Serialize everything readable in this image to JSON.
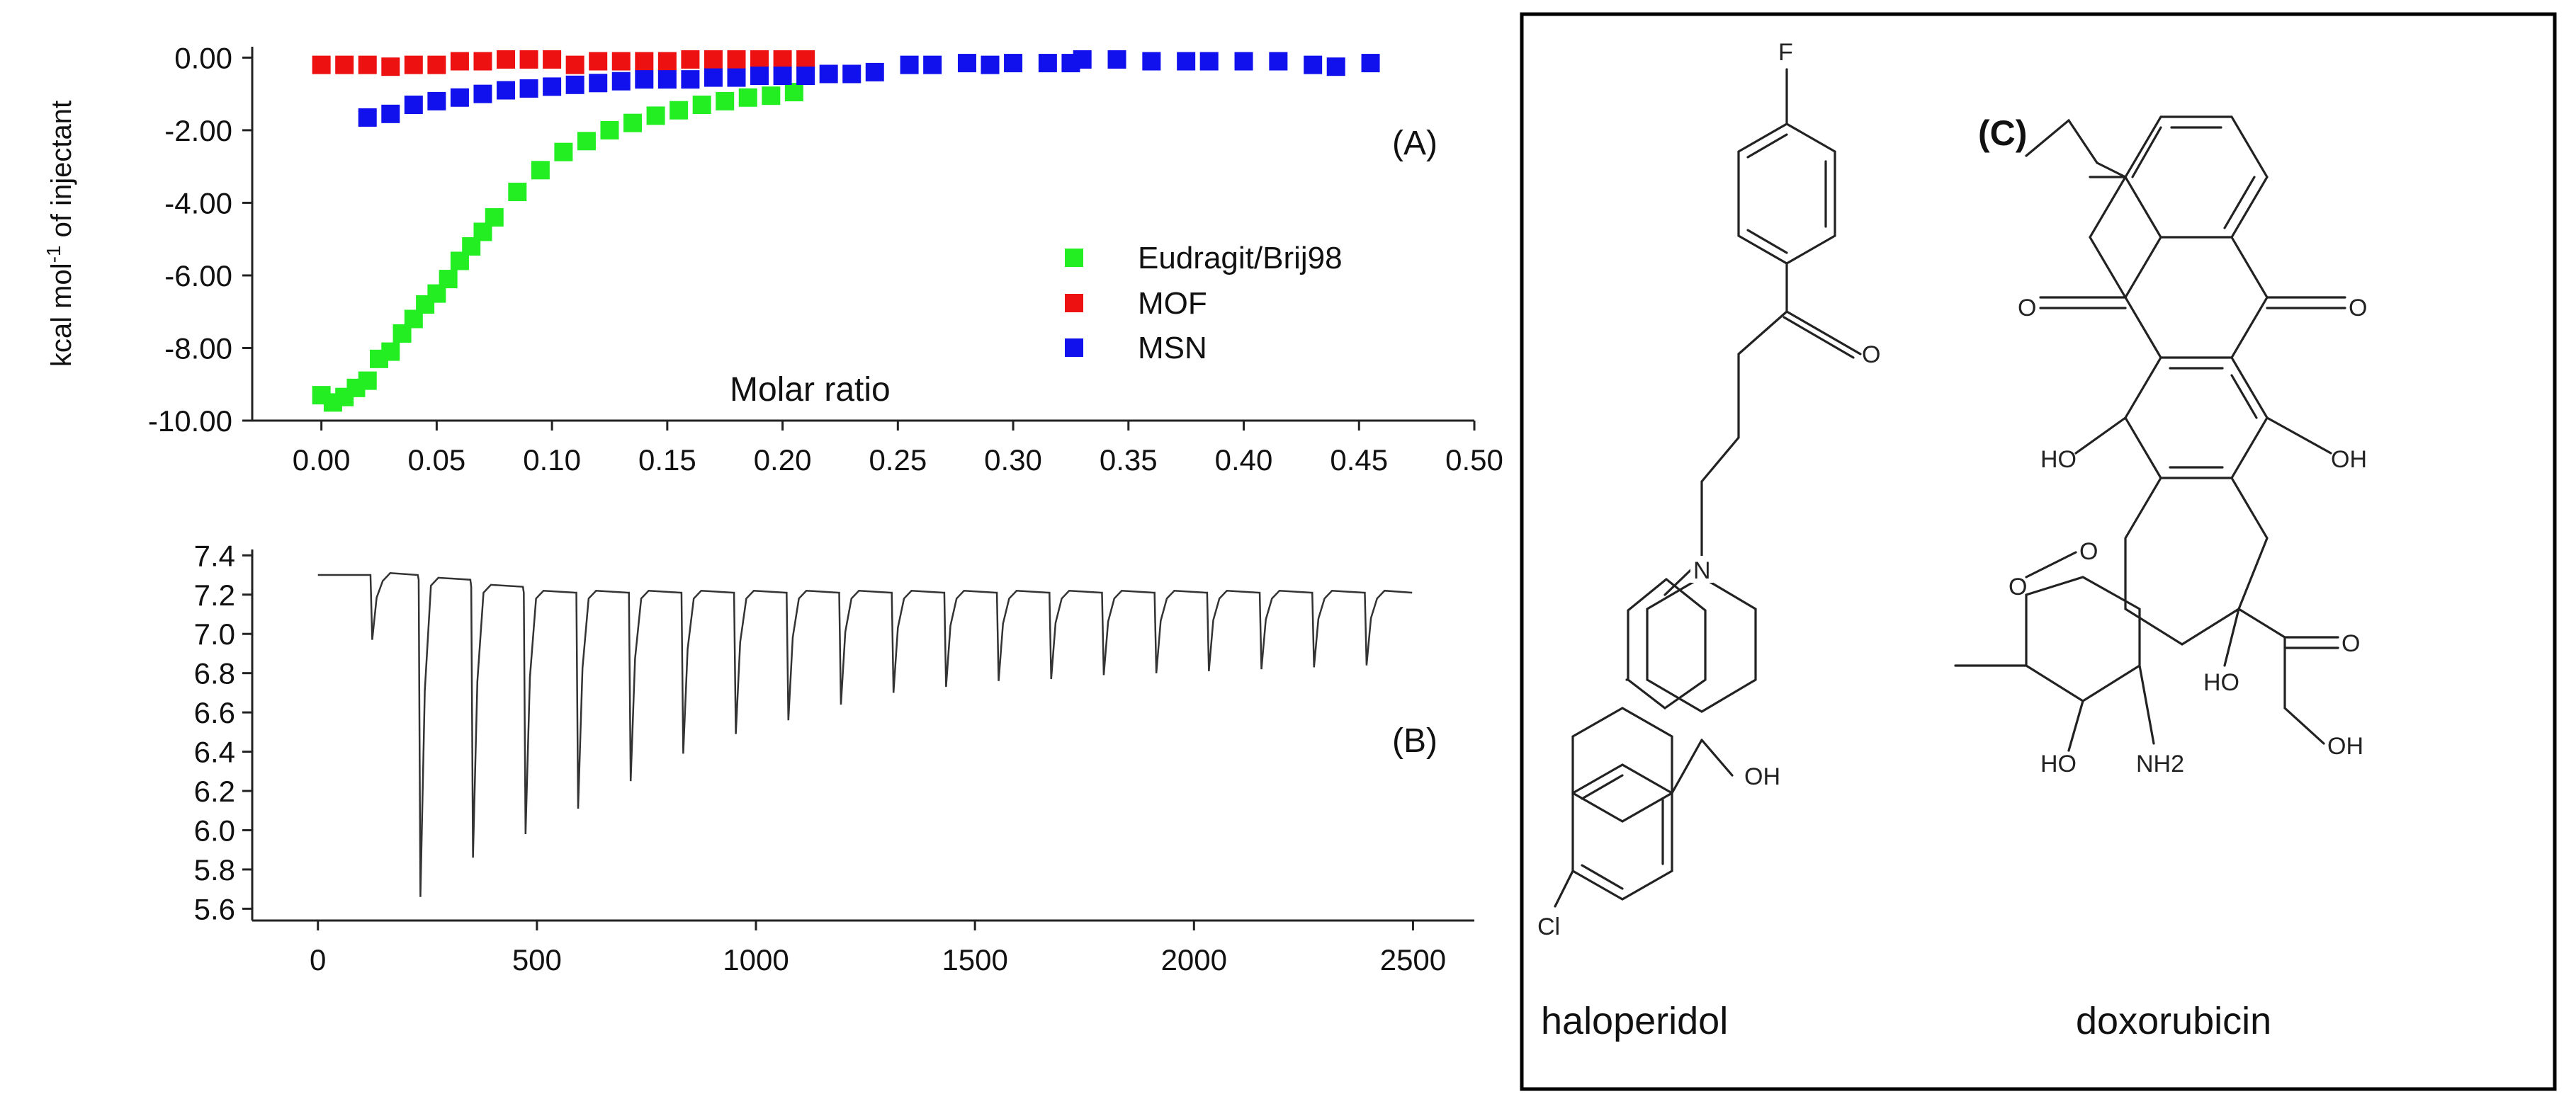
{
  "chart_data": [
    {
      "panel": "(A)",
      "type": "scatter",
      "xlabel": "Molar ratio",
      "ylabel": "kcal mol-1 of injectant",
      "ylabel_parts": {
        "pre": "kcal mol",
        "sup": "-1",
        "post": " of injectant"
      },
      "xlim": [
        -0.03,
        0.5
      ],
      "ylim": [
        -10.0,
        0.3
      ],
      "xticks": [
        "0.00",
        "0.05",
        "0.10",
        "0.15",
        "0.20",
        "0.25",
        "0.30",
        "0.35",
        "0.40",
        "0.45",
        "0.50"
      ],
      "yticks": [
        "0.00",
        "-2.00",
        "-4.00",
        "-6.00",
        "-8.00",
        "-10.00"
      ],
      "legend_position": "middle-right",
      "series": [
        {
          "name": "Eudragit/Brij98",
          "color": "#22ee22",
          "x": [
            0.0,
            0.005,
            0.01,
            0.015,
            0.02,
            0.025,
            0.03,
            0.035,
            0.04,
            0.045,
            0.05,
            0.055,
            0.06,
            0.065,
            0.07,
            0.075,
            0.085,
            0.095,
            0.105,
            0.115,
            0.125,
            0.135,
            0.145,
            0.155,
            0.165,
            0.175,
            0.185,
            0.195,
            0.205
          ],
          "y": [
            -9.3,
            -9.5,
            -9.35,
            -9.1,
            -8.9,
            -8.3,
            -8.1,
            -7.6,
            -7.2,
            -6.8,
            -6.5,
            -6.1,
            -5.6,
            -5.2,
            -4.8,
            -4.4,
            -3.7,
            -3.1,
            -2.6,
            -2.3,
            -2.0,
            -1.8,
            -1.6,
            -1.45,
            -1.3,
            -1.2,
            -1.1,
            -1.05,
            -0.95
          ]
        },
        {
          "name": "MOF",
          "color": "#ee1111",
          "x": [
            0.0,
            0.01,
            0.02,
            0.03,
            0.04,
            0.05,
            0.06,
            0.07,
            0.08,
            0.09,
            0.1,
            0.11,
            0.12,
            0.13,
            0.14,
            0.15,
            0.16,
            0.17,
            0.18,
            0.19,
            0.2,
            0.21
          ],
          "y": [
            -0.2,
            -0.2,
            -0.2,
            -0.25,
            -0.2,
            -0.2,
            -0.1,
            -0.1,
            -0.05,
            -0.05,
            -0.05,
            -0.2,
            -0.1,
            -0.1,
            -0.1,
            -0.1,
            -0.05,
            -0.05,
            -0.05,
            -0.05,
            -0.05,
            -0.05
          ]
        },
        {
          "name": "MSN",
          "color": "#1111ee",
          "x": [
            0.02,
            0.03,
            0.04,
            0.05,
            0.06,
            0.07,
            0.08,
            0.09,
            0.1,
            0.11,
            0.12,
            0.13,
            0.14,
            0.15,
            0.16,
            0.17,
            0.18,
            0.19,
            0.2,
            0.21,
            0.22,
            0.23,
            0.24,
            0.255,
            0.265,
            0.28,
            0.29,
            0.3,
            0.315,
            0.325,
            0.33,
            0.345,
            0.36,
            0.375,
            0.385,
            0.4,
            0.415,
            0.43,
            0.44,
            0.455
          ],
          "y": [
            -1.65,
            -1.55,
            -1.3,
            -1.2,
            -1.1,
            -1.0,
            -0.9,
            -0.85,
            -0.8,
            -0.75,
            -0.7,
            -0.65,
            -0.6,
            -0.6,
            -0.6,
            -0.55,
            -0.55,
            -0.5,
            -0.5,
            -0.5,
            -0.45,
            -0.45,
            -0.4,
            -0.2,
            -0.2,
            -0.15,
            -0.2,
            -0.15,
            -0.15,
            -0.15,
            -0.05,
            -0.05,
            -0.1,
            -0.1,
            -0.1,
            -0.1,
            -0.1,
            -0.2,
            -0.25,
            -0.15
          ]
        }
      ]
    },
    {
      "panel": "(B)",
      "type": "line",
      "xlim": [
        -150,
        2640
      ],
      "ylim": [
        5.54,
        7.43
      ],
      "xticks": [
        "0",
        "500",
        "1000",
        "1500",
        "2000",
        "2500"
      ],
      "yticks": [
        "7.4",
        "7.2",
        "7.0",
        "6.8",
        "6.6",
        "6.4",
        "6.2",
        "6.0",
        "5.8",
        "5.6"
      ],
      "baseline": 7.3,
      "baseline_end": 7.21,
      "x_start": 0,
      "x_end": 2500,
      "injection_times": [
        120,
        230,
        350,
        470,
        590,
        710,
        830,
        950,
        1070,
        1190,
        1310,
        1430,
        1550,
        1670,
        1790,
        1910,
        2030,
        2150,
        2270,
        2390
      ],
      "injection_minima": [
        6.97,
        5.66,
        5.86,
        5.98,
        6.11,
        6.25,
        6.39,
        6.49,
        6.56,
        6.64,
        6.7,
        6.73,
        6.76,
        6.77,
        6.79,
        6.8,
        6.81,
        6.82,
        6.83,
        6.84
      ],
      "series": [
        {
          "color": "#333333"
        }
      ]
    }
  ],
  "panels": {
    "a_label": "(A)",
    "b_label": "(B)",
    "c_label": "(C)"
  },
  "structures": {
    "haloperidol": {
      "name": "haloperidol",
      "atoms": {
        "f": "F",
        "o": "O",
        "n": "N",
        "oh": "OH",
        "cl": "Cl"
      }
    },
    "doxorubicin": {
      "name": "doxorubicin",
      "atoms": {
        "o_top": "O",
        "o_bot": "O",
        "oh_left": "HO",
        "oh_right": "OH",
        "o_link": "O",
        "o_ring": "O",
        "ho_c9": "HO",
        "o_ketone": "O",
        "ho_sugar": "HO",
        "nh2": "NH2",
        "oh_end": "OH"
      }
    }
  }
}
